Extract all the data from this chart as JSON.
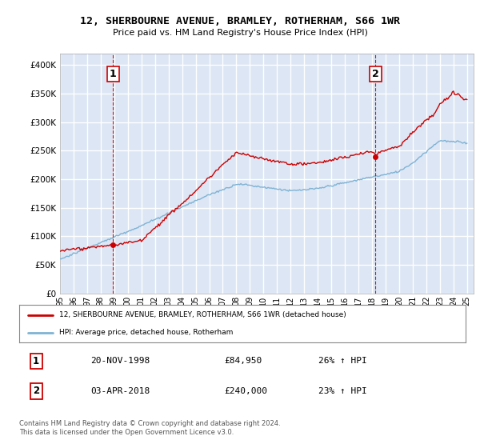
{
  "title": "12, SHERBOURNE AVENUE, BRAMLEY, ROTHERHAM, S66 1WR",
  "subtitle": "Price paid vs. HM Land Registry's House Price Index (HPI)",
  "ylabel_ticks": [
    "£0",
    "£50K",
    "£100K",
    "£150K",
    "£200K",
    "£250K",
    "£300K",
    "£350K",
    "£400K"
  ],
  "ytick_values": [
    0,
    50000,
    100000,
    150000,
    200000,
    250000,
    300000,
    350000,
    400000
  ],
  "ylim": [
    0,
    420000
  ],
  "xlim_start": 1995.0,
  "xlim_end": 2025.5,
  "background_color": "#dce6f5",
  "plot_bg_color": "#dce6f5",
  "grid_color": "#ffffff",
  "red_line_color": "#cc0000",
  "blue_line_color": "#7fb3d3",
  "marker1_date": 1998.9,
  "marker1_value": 84950,
  "marker2_date": 2018.25,
  "marker2_value": 240000,
  "dashed_line_color": "#cc0000",
  "legend_label1": "12, SHERBOURNE AVENUE, BRAMLEY, ROTHERHAM, S66 1WR (detached house)",
  "legend_label2": "HPI: Average price, detached house, Rotherham",
  "annotation1_num": "1",
  "annotation1_date": "20-NOV-1998",
  "annotation1_price": "£84,950",
  "annotation1_hpi": "26% ↑ HPI",
  "annotation2_num": "2",
  "annotation2_date": "03-APR-2018",
  "annotation2_price": "£240,000",
  "annotation2_hpi": "23% ↑ HPI",
  "footnote": "Contains HM Land Registry data © Crown copyright and database right 2024.\nThis data is licensed under the Open Government Licence v3.0.",
  "xtick_years": [
    1995,
    1996,
    1997,
    1998,
    1999,
    2000,
    2001,
    2002,
    2003,
    2004,
    2005,
    2006,
    2007,
    2008,
    2009,
    2010,
    2011,
    2012,
    2013,
    2014,
    2015,
    2016,
    2017,
    2018,
    2019,
    2020,
    2021,
    2022,
    2023,
    2024,
    2025
  ]
}
